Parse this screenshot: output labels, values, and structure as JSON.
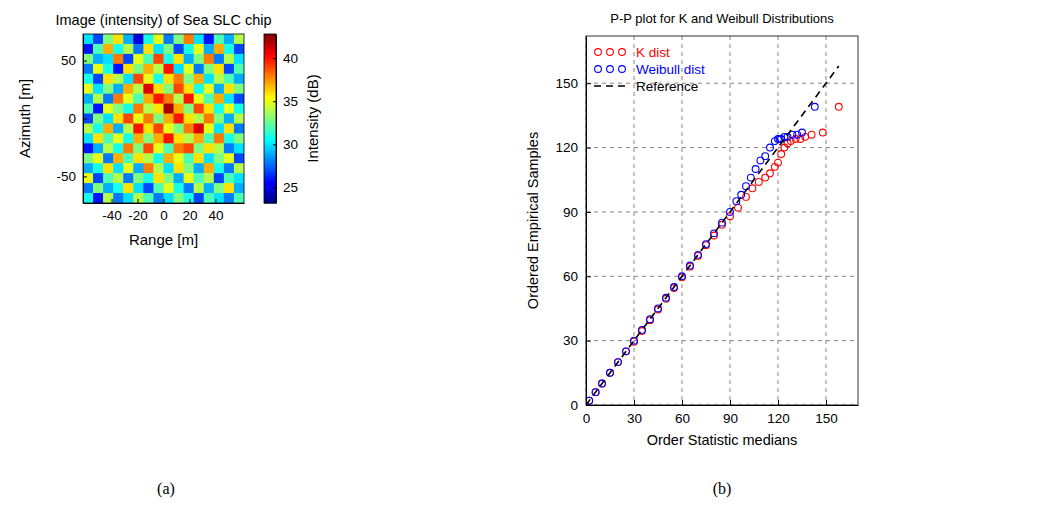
{
  "chart_data": [
    {
      "type": "heatmap",
      "title": "Image (intensity) of Sea SLC chip",
      "x_label": "Range [m]",
      "y_label": "Azimuth [m]",
      "caption": "(a)",
      "xlim": [
        -62,
        62
      ],
      "ylim": [
        -73,
        73
      ],
      "xticks": [
        -40,
        -20,
        0,
        20,
        40
      ],
      "yticks": [
        -50,
        0,
        50
      ],
      "cells": [
        [
          30,
          27,
          33,
          36,
          29,
          25,
          31,
          35,
          28,
          33,
          38,
          30,
          26,
          32,
          29,
          34
        ],
        [
          26,
          32,
          37,
          31,
          34,
          28,
          36,
          30,
          33,
          27,
          31,
          35,
          29,
          37,
          31,
          27
        ],
        [
          33,
          29,
          30,
          38,
          27,
          35,
          32,
          39,
          31,
          36,
          29,
          33,
          38,
          28,
          34,
          30
        ],
        [
          28,
          35,
          31,
          26,
          36,
          33,
          37,
          34,
          40,
          30,
          35,
          28,
          33,
          36,
          27,
          32
        ],
        [
          31,
          27,
          36,
          34,
          30,
          39,
          35,
          31,
          36,
          38,
          33,
          37,
          30,
          34,
          32,
          29
        ],
        [
          35,
          30,
          33,
          29,
          37,
          34,
          41,
          36,
          33,
          39,
          36,
          31,
          35,
          29,
          36,
          33
        ],
        [
          29,
          34,
          28,
          38,
          35,
          32,
          37,
          40,
          38,
          34,
          40,
          35,
          32,
          37,
          30,
          27
        ],
        [
          32,
          26,
          35,
          33,
          31,
          38,
          34,
          36,
          42,
          37,
          33,
          39,
          36,
          31,
          35,
          31
        ],
        [
          27,
          33,
          30,
          36,
          39,
          35,
          38,
          33,
          37,
          40,
          36,
          34,
          38,
          33,
          29,
          34
        ],
        [
          34,
          31,
          37,
          29,
          34,
          40,
          36,
          39,
          35,
          33,
          38,
          41,
          35,
          30,
          36,
          28
        ],
        [
          30,
          36,
          32,
          35,
          31,
          37,
          33,
          37,
          40,
          36,
          34,
          37,
          32,
          38,
          31,
          33
        ],
        [
          26,
          29,
          34,
          31,
          38,
          33,
          39,
          35,
          32,
          38,
          39,
          33,
          36,
          34,
          28,
          30
        ],
        [
          33,
          35,
          28,
          37,
          32,
          36,
          34,
          31,
          37,
          35,
          32,
          36,
          30,
          33,
          35,
          27
        ],
        [
          29,
          31,
          36,
          30,
          35,
          29,
          38,
          34,
          30,
          36,
          33,
          29,
          37,
          31,
          28,
          34
        ],
        [
          35,
          27,
          32,
          34,
          28,
          33,
          31,
          36,
          33,
          29,
          35,
          32,
          34,
          27,
          32,
          30
        ],
        [
          28,
          33,
          29,
          31,
          36,
          30,
          27,
          32,
          35,
          31,
          28,
          34,
          29,
          33,
          36,
          29
        ],
        [
          31,
          26,
          34,
          28,
          30,
          34,
          32,
          28,
          30,
          33,
          31,
          27,
          32,
          30,
          28,
          32
        ]
      ],
      "colorbar": {
        "label": "Intensity (dB)",
        "lim": [
          23.2,
          42.8
        ],
        "ticks": [
          25,
          30,
          35,
          40
        ]
      }
    },
    {
      "type": "scatter",
      "title": "P-P plot for K and Weibull Distributions",
      "x_label": "Order Statistic medians",
      "y_label": "Ordered Empirical Samples",
      "caption": "(b)",
      "xlim": [
        0,
        170
      ],
      "ylim": [
        0,
        172
      ],
      "xticks": [
        0,
        30,
        60,
        90,
        120,
        150
      ],
      "yticks": [
        0,
        30,
        60,
        90,
        120,
        150
      ],
      "grid": true,
      "legend": "top-left",
      "series": [
        {
          "name": "K dist",
          "color": "#ff0000",
          "marker": "circle",
          "x": [
            2,
            6,
            10,
            15,
            20,
            25,
            30,
            35,
            40,
            45,
            50,
            55,
            60,
            65,
            70,
            75,
            80,
            85,
            90,
            95,
            100,
            104,
            108,
            112,
            115,
            118,
            120,
            122,
            124,
            126,
            128,
            131,
            134,
            137,
            141,
            148,
            158
          ],
          "values": [
            2,
            6,
            10,
            15,
            20,
            25,
            29.5,
            34.5,
            39.5,
            44.5,
            49.5,
            54.5,
            59.5,
            64.5,
            69.5,
            74.5,
            79,
            84,
            88,
            92,
            97,
            101,
            104,
            106,
            108,
            111,
            113,
            117,
            120,
            122,
            123,
            124,
            124,
            125,
            126,
            127,
            139
          ]
        },
        {
          "name": "Weibull dist",
          "color": "#0000ff",
          "marker": "circle",
          "x": [
            2,
            6,
            10,
            15,
            20,
            25,
            30,
            35,
            40,
            45,
            50,
            55,
            60,
            65,
            70,
            75,
            80,
            85,
            90,
            94,
            97,
            100,
            103,
            106,
            109,
            112,
            115,
            118,
            120,
            121,
            122,
            124,
            126,
            129,
            132,
            135,
            143
          ],
          "values": [
            2,
            6,
            10,
            15,
            20,
            25,
            30,
            35,
            40,
            45,
            50,
            55,
            60,
            65,
            70,
            75,
            80,
            85,
            90,
            95,
            98,
            102,
            106,
            110,
            114,
            116,
            120,
            123,
            124,
            124,
            124,
            125,
            125,
            126,
            126,
            127,
            139
          ]
        },
        {
          "name": "Reference",
          "type": "line",
          "line_style": "dashed",
          "color": "#000000",
          "x": [
            0,
            158
          ],
          "values": [
            0,
            158
          ]
        }
      ]
    }
  ]
}
